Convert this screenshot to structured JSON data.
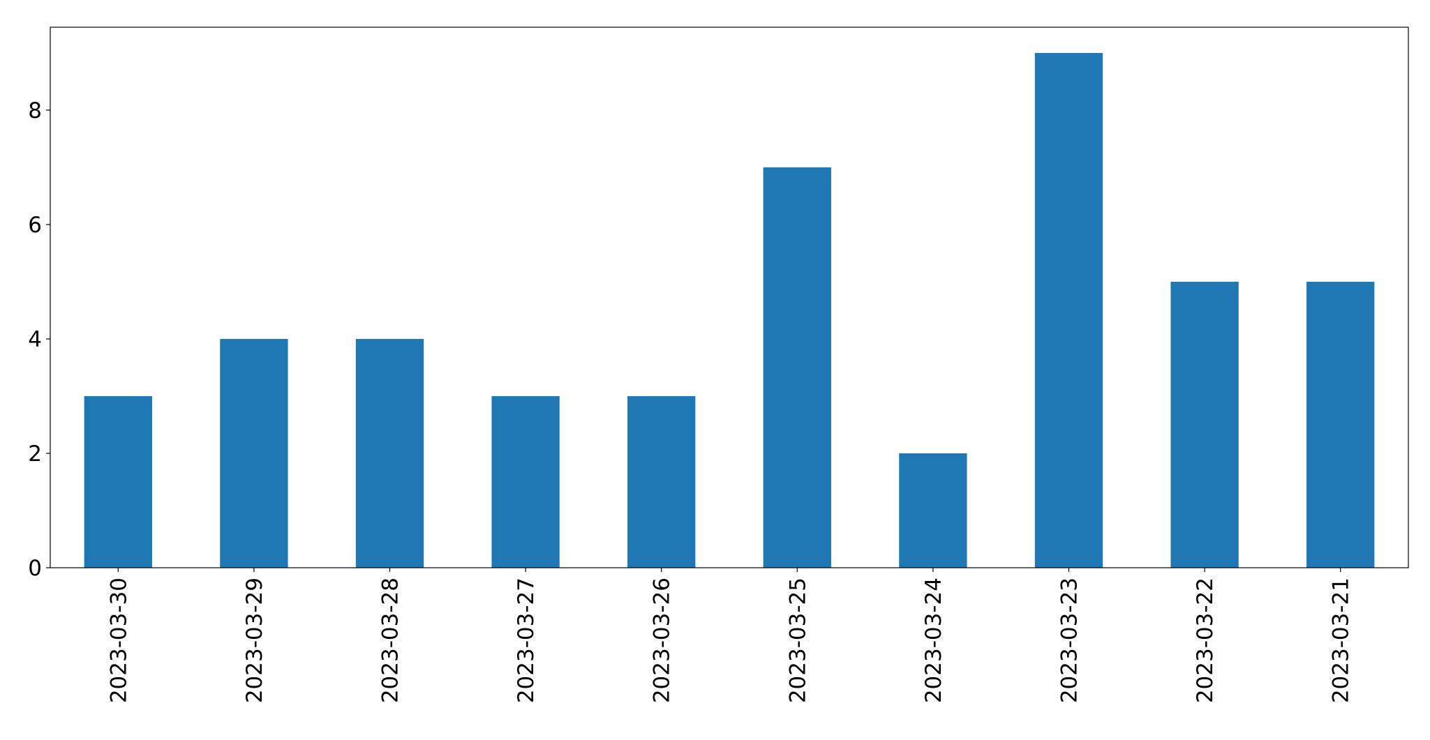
{
  "chart_data": {
    "type": "bar",
    "categories": [
      "2023-03-30",
      "2023-03-29",
      "2023-03-28",
      "2023-03-27",
      "2023-03-26",
      "2023-03-25",
      "2023-03-24",
      "2023-03-23",
      "2023-03-22",
      "2023-03-21"
    ],
    "values": [
      3,
      4,
      4,
      3,
      3,
      7,
      2,
      9,
      5,
      5
    ],
    "color": "#1f77b4",
    "ylim": [
      0,
      9.45
    ],
    "yticks": [
      0,
      2,
      4,
      6,
      8
    ],
    "grid": false
  }
}
